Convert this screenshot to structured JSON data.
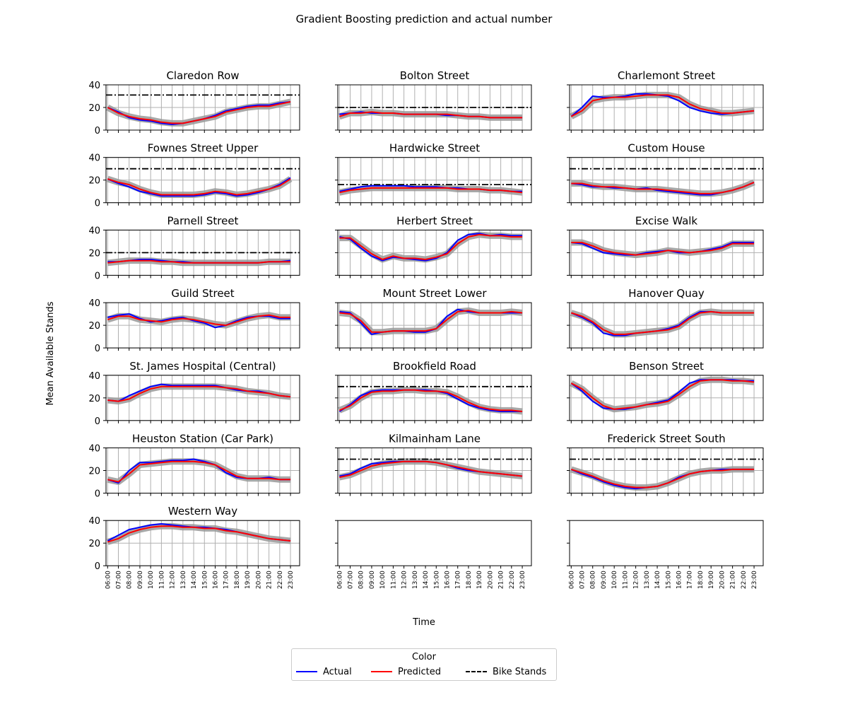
{
  "figure": {
    "title": "Gradient Boosting prediction and actual number",
    "xlabel": "Time",
    "ylabel": "Mean Available Stands"
  },
  "legend": {
    "title": "Color",
    "items": [
      {
        "label": "Actual",
        "color": "#0000ff",
        "style": "solid"
      },
      {
        "label": "Predicted",
        "color": "#ff0000",
        "style": "solid"
      },
      {
        "label": "Bike Stands",
        "color": "#000000",
        "style": "dashdot"
      }
    ]
  },
  "chart_data": {
    "type": "line",
    "x_ticks": [
      "06:00",
      "07:00",
      "08:00",
      "09:00",
      "10:00",
      "11:00",
      "12:00",
      "13:00",
      "14:00",
      "15:00",
      "16:00",
      "17:00",
      "18:00",
      "19:00",
      "20:00",
      "21:00",
      "22:00",
      "23:00"
    ],
    "ylim": [
      0,
      40
    ],
    "y_ticks": [
      0,
      20,
      40
    ],
    "grid": true,
    "band_color": "#999999",
    "panels": [
      {
        "title": "Claredon Row",
        "bike_stands": 31,
        "actual": [
          20,
          16,
          11,
          9,
          8,
          6,
          5,
          6,
          8,
          10,
          13,
          17,
          19,
          21,
          22,
          22,
          24,
          25
        ],
        "predicted": [
          20,
          15,
          12,
          10,
          9,
          7,
          6,
          6,
          8,
          10,
          12,
          16,
          18,
          20,
          21,
          21,
          23,
          25
        ]
      },
      {
        "title": "Bolton Street",
        "bike_stands": 20,
        "actual": [
          14,
          15,
          16,
          15,
          15,
          15,
          14,
          14,
          14,
          14,
          13,
          13,
          12,
          12,
          11,
          11,
          11,
          11
        ],
        "predicted": [
          12,
          15,
          15,
          16,
          15,
          15,
          14,
          14,
          14,
          14,
          14,
          13,
          12,
          12,
          11,
          11,
          11,
          11
        ]
      },
      {
        "title": "Charlemont Street",
        "bike_stands": null,
        "actual": [
          12,
          20,
          30,
          29,
          29,
          30,
          32,
          32,
          31,
          30,
          26,
          20,
          17,
          15,
          14,
          15,
          16,
          17
        ],
        "predicted": [
          12,
          17,
          26,
          28,
          29,
          29,
          30,
          31,
          31,
          31,
          29,
          23,
          19,
          17,
          15,
          15,
          16,
          17
        ]
      },
      {
        "title": "Fownes Street Upper",
        "bike_stands": 30,
        "actual": [
          21,
          17,
          14,
          10,
          8,
          6,
          6,
          6,
          6,
          7,
          9,
          8,
          6,
          7,
          9,
          12,
          16,
          22
        ],
        "predicted": [
          21,
          18,
          16,
          12,
          9,
          7,
          7,
          7,
          7,
          8,
          10,
          9,
          7,
          8,
          10,
          12,
          15,
          21
        ]
      },
      {
        "title": "Hardwicke Street",
        "bike_stands": 16,
        "actual": [
          10,
          12,
          14,
          15,
          15,
          15,
          15,
          14,
          14,
          14,
          13,
          13,
          12,
          12,
          11,
          11,
          10,
          10
        ],
        "predicted": [
          9,
          11,
          12,
          13,
          13,
          13,
          13,
          13,
          13,
          13,
          13,
          12,
          12,
          12,
          11,
          11,
          10,
          9
        ]
      },
      {
        "title": "Custom House",
        "bike_stands": 30,
        "actual": [
          17,
          16,
          14,
          14,
          13,
          13,
          12,
          13,
          11,
          10,
          9,
          8,
          7,
          7,
          9,
          11,
          14,
          18
        ],
        "predicted": [
          17,
          17,
          15,
          14,
          14,
          13,
          12,
          12,
          12,
          11,
          10,
          9,
          8,
          8,
          9,
          11,
          14,
          18
        ]
      },
      {
        "title": "Parnell Street",
        "bike_stands": 20,
        "actual": [
          12,
          12,
          13,
          14,
          14,
          13,
          12,
          12,
          11,
          11,
          11,
          11,
          11,
          11,
          11,
          12,
          12,
          13
        ],
        "predicted": [
          11,
          12,
          13,
          13,
          13,
          12,
          12,
          11,
          11,
          11,
          11,
          11,
          11,
          11,
          11,
          12,
          12,
          12
        ]
      },
      {
        "title": "Herbert Street",
        "bike_stands": null,
        "actual": [
          34,
          32,
          24,
          17,
          13,
          16,
          15,
          14,
          13,
          15,
          20,
          31,
          36,
          37,
          35,
          36,
          35,
          35
        ],
        "predicted": [
          33,
          33,
          26,
          19,
          14,
          17,
          15,
          15,
          14,
          16,
          19,
          28,
          34,
          36,
          35,
          35,
          34,
          34
        ]
      },
      {
        "title": "Excise Walk",
        "bike_stands": null,
        "actual": [
          29,
          28,
          24,
          20,
          19,
          18,
          18,
          20,
          21,
          22,
          20,
          20,
          21,
          23,
          25,
          29,
          29,
          29
        ],
        "predicted": [
          29,
          29,
          26,
          22,
          20,
          19,
          18,
          19,
          20,
          22,
          21,
          20,
          21,
          22,
          24,
          28,
          28,
          28
        ]
      },
      {
        "title": "Guild Street",
        "bike_stands": null,
        "actual": [
          27,
          29,
          30,
          26,
          23,
          24,
          26,
          27,
          24,
          22,
          18,
          20,
          24,
          27,
          28,
          28,
          26,
          26
        ],
        "predicted": [
          25,
          28,
          28,
          25,
          24,
          23,
          25,
          26,
          25,
          23,
          21,
          20,
          23,
          26,
          28,
          29,
          27,
          27
        ]
      },
      {
        "title": "Mount Street Lower",
        "bike_stands": null,
        "actual": [
          32,
          31,
          22,
          12,
          14,
          15,
          15,
          14,
          14,
          17,
          28,
          34,
          32,
          31,
          31,
          31,
          31,
          31
        ],
        "predicted": [
          31,
          30,
          24,
          14,
          14,
          15,
          15,
          15,
          15,
          17,
          25,
          32,
          33,
          31,
          31,
          31,
          32,
          31
        ]
      },
      {
        "title": "Hanover Quay",
        "bike_stands": null,
        "actual": [
          31,
          27,
          22,
          13,
          11,
          11,
          13,
          14,
          15,
          17,
          20,
          27,
          32,
          32,
          31,
          31,
          31,
          31
        ],
        "predicted": [
          31,
          28,
          23,
          16,
          12,
          12,
          13,
          14,
          15,
          16,
          19,
          26,
          31,
          32,
          31,
          31,
          31,
          31
        ]
      },
      {
        "title": "St. James Hospital (Central)",
        "bike_stands": null,
        "actual": [
          18,
          17,
          22,
          26,
          30,
          32,
          31,
          31,
          31,
          31,
          31,
          29,
          27,
          26,
          26,
          24,
          22,
          21
        ],
        "predicted": [
          18,
          17,
          19,
          24,
          28,
          30,
          30,
          30,
          30,
          30,
          30,
          29,
          28,
          26,
          25,
          24,
          22,
          21
        ]
      },
      {
        "title": "Brookfield Road",
        "bike_stands": 30,
        "actual": [
          8,
          14,
          22,
          26,
          27,
          27,
          27,
          27,
          27,
          26,
          24,
          19,
          14,
          11,
          9,
          8,
          8,
          8
        ],
        "predicted": [
          9,
          13,
          20,
          25,
          26,
          26,
          27,
          27,
          26,
          26,
          25,
          21,
          16,
          12,
          10,
          9,
          9,
          8
        ]
      },
      {
        "title": "Benson Street",
        "bike_stands": null,
        "actual": [
          33,
          26,
          17,
          11,
          10,
          10,
          12,
          14,
          16,
          18,
          25,
          33,
          36,
          36,
          36,
          36,
          35,
          35
        ],
        "predicted": [
          33,
          28,
          20,
          13,
          10,
          11,
          12,
          14,
          15,
          17,
          23,
          30,
          35,
          36,
          36,
          35,
          35,
          34
        ]
      },
      {
        "title": "Heuston Station (Car Park)",
        "bike_stands": null,
        "actual": [
          12,
          9,
          20,
          27,
          27,
          28,
          29,
          29,
          30,
          28,
          25,
          18,
          14,
          13,
          13,
          14,
          12,
          12
        ],
        "predicted": [
          12,
          10,
          17,
          25,
          26,
          27,
          28,
          28,
          28,
          27,
          25,
          20,
          15,
          13,
          13,
          13,
          12,
          12
        ]
      },
      {
        "title": "Kilmainham Lane",
        "bike_stands": 30,
        "actual": [
          15,
          17,
          22,
          26,
          27,
          28,
          28,
          28,
          28,
          27,
          25,
          22,
          20,
          19,
          18,
          17,
          16,
          15
        ],
        "predicted": [
          14,
          16,
          20,
          24,
          26,
          27,
          28,
          28,
          28,
          27,
          25,
          23,
          21,
          19,
          18,
          17,
          16,
          15
        ]
      },
      {
        "title": "Frederick Street South",
        "bike_stands": 30,
        "actual": [
          21,
          17,
          14,
          10,
          7,
          5,
          4,
          5,
          6,
          9,
          14,
          17,
          19,
          20,
          21,
          21,
          21,
          21
        ],
        "predicted": [
          21,
          18,
          15,
          11,
          8,
          6,
          5,
          5,
          6,
          9,
          13,
          17,
          19,
          20,
          20,
          21,
          21,
          21
        ]
      },
      {
        "title": "Western Way",
        "bike_stands": null,
        "actual": [
          22,
          27,
          32,
          34,
          36,
          37,
          36,
          35,
          34,
          34,
          33,
          32,
          30,
          28,
          26,
          24,
          23,
          22
        ],
        "predicted": [
          21,
          24,
          29,
          32,
          34,
          35,
          35,
          34,
          34,
          33,
          33,
          31,
          30,
          28,
          26,
          24,
          23,
          22
        ]
      },
      {
        "title": "",
        "bike_stands": null,
        "actual": [],
        "predicted": []
      },
      {
        "title": "",
        "bike_stands": null,
        "actual": [],
        "predicted": []
      }
    ]
  }
}
